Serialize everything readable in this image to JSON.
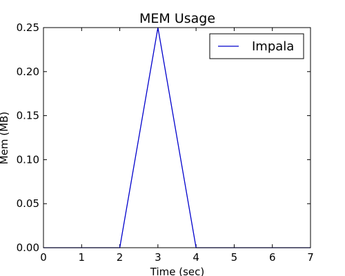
{
  "chart_data": {
    "type": "line",
    "title": "MEM Usage",
    "xlabel": "Time (sec)",
    "ylabel": "Mem (MB)",
    "xlim": [
      0,
      7
    ],
    "ylim": [
      0,
      0.25
    ],
    "xticks": [
      "0",
      "1",
      "2",
      "3",
      "4",
      "5",
      "6",
      "7"
    ],
    "yticks": [
      "0.00",
      "0.05",
      "0.10",
      "0.15",
      "0.20",
      "0.25"
    ],
    "grid": false,
    "legend_position": "top-right",
    "series": [
      {
        "name": "Impala",
        "color": "#0000cc",
        "x": [
          0,
          1,
          2,
          3,
          4,
          5,
          6,
          7
        ],
        "y": [
          0,
          0,
          0,
          0.25,
          0,
          0,
          0,
          0
        ]
      }
    ]
  }
}
